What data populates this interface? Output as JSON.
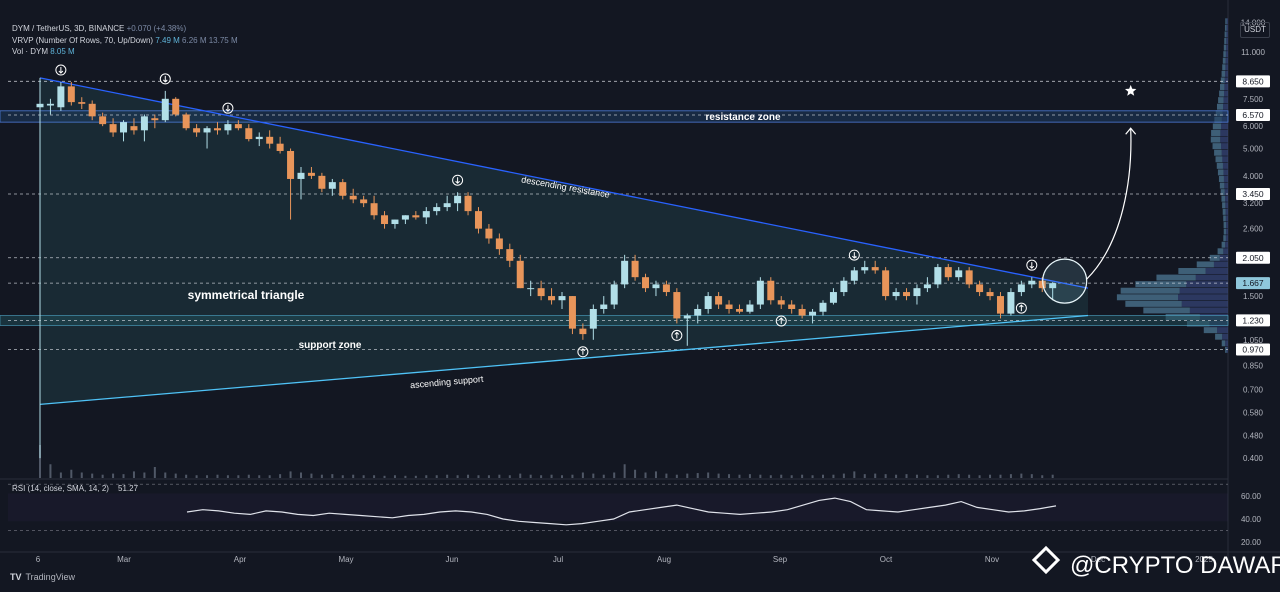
{
  "header": {
    "symbol_line": "DYM / TetherUS, 3D, BINANCE",
    "change": "+0.070 (+4.38%)",
    "vrvp_line": "VRVP (Number Of Rows, 70, Up/Down)",
    "vrvp_values": [
      "7.49 M",
      "6.26 M",
      "13.75 M"
    ],
    "vol_line": "Vol · DYM",
    "vol_value": "8.05 M",
    "currency": "USDT"
  },
  "colors": {
    "background": "#131722",
    "up_candle": "#b2dfe8",
    "down_candle": "#e8955a",
    "trendline": "#2962ff",
    "support_line": "#4fc3f7",
    "zone": "#1e3a5f"
  },
  "annotations": {
    "resistance_zone": "resistance zone",
    "descending_resistance": "descending resistance",
    "symmetrical_triangle": "symmetrical triangle",
    "support_zone": "support zone",
    "ascending_support": "ascending support"
  },
  "rsi": {
    "label": "RSI (14, close, SMA, 14, 2)",
    "value": "51.27",
    "ticks": [
      "60.00",
      "40.00",
      "20.00"
    ]
  },
  "footer": {
    "tradingview": "TradingView",
    "watermark": "@CRYPTO DAWAR"
  },
  "chart_data": {
    "type": "candlestick",
    "scale": "log",
    "ylim": [
      0.34,
      14.5
    ],
    "y_ticks": [
      "14.000",
      "11.000",
      "8.650",
      "7.500",
      "6.570",
      "6.000",
      "5.000",
      "4.000",
      "3.450",
      "3.200",
      "2.600",
      "2.050",
      "1.667",
      "1.500",
      "1.230",
      "1.050",
      "0.970",
      "0.850",
      "0.700",
      "0.580",
      "0.480",
      "0.400"
    ],
    "highlighted_levels": [
      "8.650",
      "6.570",
      "3.450",
      "2.050",
      "1.667",
      "1.230",
      "0.970"
    ],
    "x_ticks": [
      "6",
      "Mar",
      "Apr",
      "May",
      "Jun",
      "Jul",
      "Aug",
      "Sep",
      "Oct",
      "Nov",
      "Dec",
      "2025"
    ],
    "resistance_zone": [
      6.2,
      6.8
    ],
    "support_zone": [
      1.18,
      1.28
    ],
    "descending_resistance": {
      "start": 8.9,
      "end": 1.6
    },
    "ascending_support": {
      "start": 0.62,
      "end": 1.28
    },
    "last_price": 1.667,
    "candles": [
      {
        "o": 7.0,
        "h": 8.9,
        "l": 0.4,
        "c": 7.2
      },
      {
        "o": 7.1,
        "h": 7.5,
        "l": 6.6,
        "c": 7.2
      },
      {
        "o": 7.0,
        "h": 8.6,
        "l": 6.8,
        "c": 8.3
      },
      {
        "o": 8.3,
        "h": 8.6,
        "l": 7.1,
        "c": 7.3
      },
      {
        "o": 7.3,
        "h": 7.6,
        "l": 6.9,
        "c": 7.2
      },
      {
        "o": 7.2,
        "h": 7.4,
        "l": 6.3,
        "c": 6.5
      },
      {
        "o": 6.5,
        "h": 6.7,
        "l": 6.0,
        "c": 6.1
      },
      {
        "o": 6.1,
        "h": 6.4,
        "l": 5.5,
        "c": 5.7
      },
      {
        "o": 5.7,
        "h": 6.3,
        "l": 5.3,
        "c": 6.2
      },
      {
        "o": 6.0,
        "h": 6.4,
        "l": 5.6,
        "c": 5.8
      },
      {
        "o": 5.8,
        "h": 6.6,
        "l": 5.3,
        "c": 6.5
      },
      {
        "o": 6.4,
        "h": 6.6,
        "l": 5.9,
        "c": 6.3
      },
      {
        "o": 6.3,
        "h": 8.0,
        "l": 6.2,
        "c": 7.5
      },
      {
        "o": 7.5,
        "h": 7.6,
        "l": 6.5,
        "c": 6.6
      },
      {
        "o": 6.6,
        "h": 6.7,
        "l": 5.8,
        "c": 5.9
      },
      {
        "o": 5.9,
        "h": 6.1,
        "l": 5.5,
        "c": 5.7
      },
      {
        "o": 5.7,
        "h": 6.0,
        "l": 5.0,
        "c": 5.9
      },
      {
        "o": 5.9,
        "h": 6.2,
        "l": 5.6,
        "c": 5.8
      },
      {
        "o": 5.8,
        "h": 6.3,
        "l": 5.6,
        "c": 6.1
      },
      {
        "o": 6.1,
        "h": 6.3,
        "l": 5.8,
        "c": 5.9
      },
      {
        "o": 5.9,
        "h": 6.1,
        "l": 5.3,
        "c": 5.4
      },
      {
        "o": 5.4,
        "h": 5.7,
        "l": 5.1,
        "c": 5.5
      },
      {
        "o": 5.5,
        "h": 5.8,
        "l": 5.0,
        "c": 5.2
      },
      {
        "o": 5.2,
        "h": 5.5,
        "l": 4.8,
        "c": 4.9
      },
      {
        "o": 4.9,
        "h": 5.0,
        "l": 2.8,
        "c": 3.9
      },
      {
        "o": 3.9,
        "h": 4.3,
        "l": 3.3,
        "c": 4.1
      },
      {
        "o": 4.1,
        "h": 4.3,
        "l": 3.9,
        "c": 4.0
      },
      {
        "o": 4.0,
        "h": 4.1,
        "l": 3.5,
        "c": 3.6
      },
      {
        "o": 3.6,
        "h": 3.9,
        "l": 3.4,
        "c": 3.8
      },
      {
        "o": 3.8,
        "h": 3.9,
        "l": 3.3,
        "c": 3.4
      },
      {
        "o": 3.4,
        "h": 3.6,
        "l": 3.2,
        "c": 3.3
      },
      {
        "o": 3.3,
        "h": 3.4,
        "l": 3.1,
        "c": 3.2
      },
      {
        "o": 3.2,
        "h": 3.4,
        "l": 2.8,
        "c": 2.9
      },
      {
        "o": 2.9,
        "h": 3.0,
        "l": 2.6,
        "c": 2.7
      },
      {
        "o": 2.7,
        "h": 2.8,
        "l": 2.6,
        "c": 2.8
      },
      {
        "o": 2.8,
        "h": 2.9,
        "l": 2.7,
        "c": 2.9
      },
      {
        "o": 2.9,
        "h": 3.0,
        "l": 2.8,
        "c": 2.85
      },
      {
        "o": 2.85,
        "h": 3.1,
        "l": 2.7,
        "c": 3.0
      },
      {
        "o": 3.0,
        "h": 3.2,
        "l": 2.9,
        "c": 3.1
      },
      {
        "o": 3.1,
        "h": 3.4,
        "l": 3.0,
        "c": 3.2
      },
      {
        "o": 3.2,
        "h": 3.5,
        "l": 3.0,
        "c": 3.4
      },
      {
        "o": 3.4,
        "h": 3.5,
        "l": 2.9,
        "c": 3.0
      },
      {
        "o": 3.0,
        "h": 3.1,
        "l": 2.5,
        "c": 2.6
      },
      {
        "o": 2.6,
        "h": 2.7,
        "l": 2.3,
        "c": 2.4
      },
      {
        "o": 2.4,
        "h": 2.5,
        "l": 2.1,
        "c": 2.2
      },
      {
        "o": 2.2,
        "h": 2.3,
        "l": 1.9,
        "c": 2.0
      },
      {
        "o": 2.0,
        "h": 2.1,
        "l": 1.6,
        "c": 1.6
      },
      {
        "o": 1.6,
        "h": 1.7,
        "l": 1.5,
        "c": 1.6
      },
      {
        "o": 1.6,
        "h": 1.7,
        "l": 1.45,
        "c": 1.5
      },
      {
        "o": 1.5,
        "h": 1.6,
        "l": 1.4,
        "c": 1.45
      },
      {
        "o": 1.45,
        "h": 1.55,
        "l": 1.35,
        "c": 1.5
      },
      {
        "o": 1.5,
        "h": 1.5,
        "l": 1.1,
        "c": 1.15
      },
      {
        "o": 1.15,
        "h": 1.2,
        "l": 1.05,
        "c": 1.1
      },
      {
        "o": 1.15,
        "h": 1.4,
        "l": 1.05,
        "c": 1.35
      },
      {
        "o": 1.35,
        "h": 1.5,
        "l": 1.3,
        "c": 1.4
      },
      {
        "o": 1.4,
        "h": 1.7,
        "l": 1.35,
        "c": 1.65
      },
      {
        "o": 1.65,
        "h": 2.1,
        "l": 1.6,
        "c": 2.0
      },
      {
        "o": 2.0,
        "h": 2.1,
        "l": 1.7,
        "c": 1.75
      },
      {
        "o": 1.75,
        "h": 1.8,
        "l": 1.55,
        "c": 1.6
      },
      {
        "o": 1.6,
        "h": 1.7,
        "l": 1.5,
        "c": 1.65
      },
      {
        "o": 1.65,
        "h": 1.7,
        "l": 1.5,
        "c": 1.55
      },
      {
        "o": 1.55,
        "h": 1.6,
        "l": 1.2,
        "c": 1.25
      },
      {
        "o": 1.25,
        "h": 1.3,
        "l": 1.0,
        "c": 1.28
      },
      {
        "o": 1.28,
        "h": 1.4,
        "l": 1.2,
        "c": 1.35
      },
      {
        "o": 1.35,
        "h": 1.55,
        "l": 1.3,
        "c": 1.5
      },
      {
        "o": 1.5,
        "h": 1.55,
        "l": 1.35,
        "c": 1.4
      },
      {
        "o": 1.4,
        "h": 1.45,
        "l": 1.3,
        "c": 1.35
      },
      {
        "o": 1.35,
        "h": 1.4,
        "l": 1.3,
        "c": 1.32
      },
      {
        "o": 1.32,
        "h": 1.45,
        "l": 1.3,
        "c": 1.4
      },
      {
        "o": 1.4,
        "h": 1.75,
        "l": 1.35,
        "c": 1.7
      },
      {
        "o": 1.7,
        "h": 1.75,
        "l": 1.4,
        "c": 1.45
      },
      {
        "o": 1.45,
        "h": 1.5,
        "l": 1.35,
        "c": 1.4
      },
      {
        "o": 1.4,
        "h": 1.45,
        "l": 1.3,
        "c": 1.35
      },
      {
        "o": 1.35,
        "h": 1.4,
        "l": 1.25,
        "c": 1.28
      },
      {
        "o": 1.28,
        "h": 1.35,
        "l": 1.2,
        "c": 1.32
      },
      {
        "o": 1.32,
        "h": 1.45,
        "l": 1.28,
        "c": 1.42
      },
      {
        "o": 1.42,
        "h": 1.6,
        "l": 1.4,
        "c": 1.55
      },
      {
        "o": 1.55,
        "h": 1.75,
        "l": 1.5,
        "c": 1.7
      },
      {
        "o": 1.7,
        "h": 1.9,
        "l": 1.65,
        "c": 1.85
      },
      {
        "o": 1.85,
        "h": 2.0,
        "l": 1.8,
        "c": 1.9
      },
      {
        "o": 1.9,
        "h": 2.0,
        "l": 1.8,
        "c": 1.85
      },
      {
        "o": 1.85,
        "h": 1.9,
        "l": 1.45,
        "c": 1.5
      },
      {
        "o": 1.5,
        "h": 1.6,
        "l": 1.45,
        "c": 1.55
      },
      {
        "o": 1.55,
        "h": 1.6,
        "l": 1.45,
        "c": 1.5
      },
      {
        "o": 1.5,
        "h": 1.65,
        "l": 1.4,
        "c": 1.6
      },
      {
        "o": 1.6,
        "h": 1.75,
        "l": 1.55,
        "c": 1.65
      },
      {
        "o": 1.65,
        "h": 1.95,
        "l": 1.6,
        "c": 1.9
      },
      {
        "o": 1.9,
        "h": 1.95,
        "l": 1.7,
        "c": 1.75
      },
      {
        "o": 1.75,
        "h": 1.9,
        "l": 1.7,
        "c": 1.85
      },
      {
        "o": 1.85,
        "h": 1.9,
        "l": 1.6,
        "c": 1.65
      },
      {
        "o": 1.65,
        "h": 1.7,
        "l": 1.5,
        "c": 1.55
      },
      {
        "o": 1.55,
        "h": 1.6,
        "l": 1.45,
        "c": 1.5
      },
      {
        "o": 1.5,
        "h": 1.55,
        "l": 1.25,
        "c": 1.3
      },
      {
        "o": 1.3,
        "h": 1.6,
        "l": 1.28,
        "c": 1.55
      },
      {
        "o": 1.55,
        "h": 1.7,
        "l": 1.5,
        "c": 1.65
      },
      {
        "o": 1.65,
        "h": 1.75,
        "l": 1.6,
        "c": 1.7
      },
      {
        "o": 1.7,
        "h": 1.75,
        "l": 1.55,
        "c": 1.6
      },
      {
        "o": 1.6,
        "h": 1.68,
        "l": 1.45,
        "c": 1.667
      }
    ],
    "rsi_values": [
      46,
      48,
      47,
      45,
      44,
      47,
      46,
      44,
      43,
      45,
      44,
      43,
      42,
      41,
      43,
      44,
      46,
      47,
      46,
      44,
      40,
      38,
      37,
      36,
      35,
      36,
      38,
      40,
      46,
      48,
      50,
      52,
      49,
      46,
      45,
      44,
      45,
      46,
      48,
      52,
      56,
      58,
      55,
      48,
      47,
      46,
      48,
      50,
      52,
      55,
      50,
      48,
      46,
      47,
      49,
      51.27
    ],
    "volume": [
      0.6,
      0.25,
      0.1,
      0.15,
      0.1,
      0.08,
      0.06,
      0.08,
      0.07,
      0.12,
      0.1,
      0.2,
      0.1,
      0.08,
      0.06,
      0.05,
      0.05,
      0.06,
      0.05,
      0.05,
      0.06,
      0.05,
      0.05,
      0.07,
      0.12,
      0.1,
      0.08,
      0.06,
      0.07,
      0.05,
      0.06,
      0.05,
      0.05,
      0.04,
      0.05,
      0.04,
      0.04,
      0.05,
      0.05,
      0.06,
      0.05,
      0.06,
      0.05,
      0.05,
      0.06,
      0.05,
      0.08,
      0.06,
      0.05,
      0.06,
      0.05,
      0.06,
      0.1,
      0.08,
      0.06,
      0.1,
      0.25,
      0.15,
      0.1,
      0.12,
      0.08,
      0.06,
      0.08,
      0.09,
      0.1,
      0.08,
      0.07,
      0.06,
      0.07,
      0.06,
      0.05,
      0.06,
      0.05,
      0.06,
      0.05,
      0.06,
      0.06,
      0.08,
      0.12,
      0.07,
      0.08,
      0.07,
      0.06,
      0.07,
      0.06,
      0.05,
      0.05,
      0.06,
      0.07,
      0.06,
      0.05,
      0.06,
      0.06,
      0.07,
      0.08,
      0.07,
      0.05,
      0.06,
      0.05,
      0.05
    ]
  }
}
